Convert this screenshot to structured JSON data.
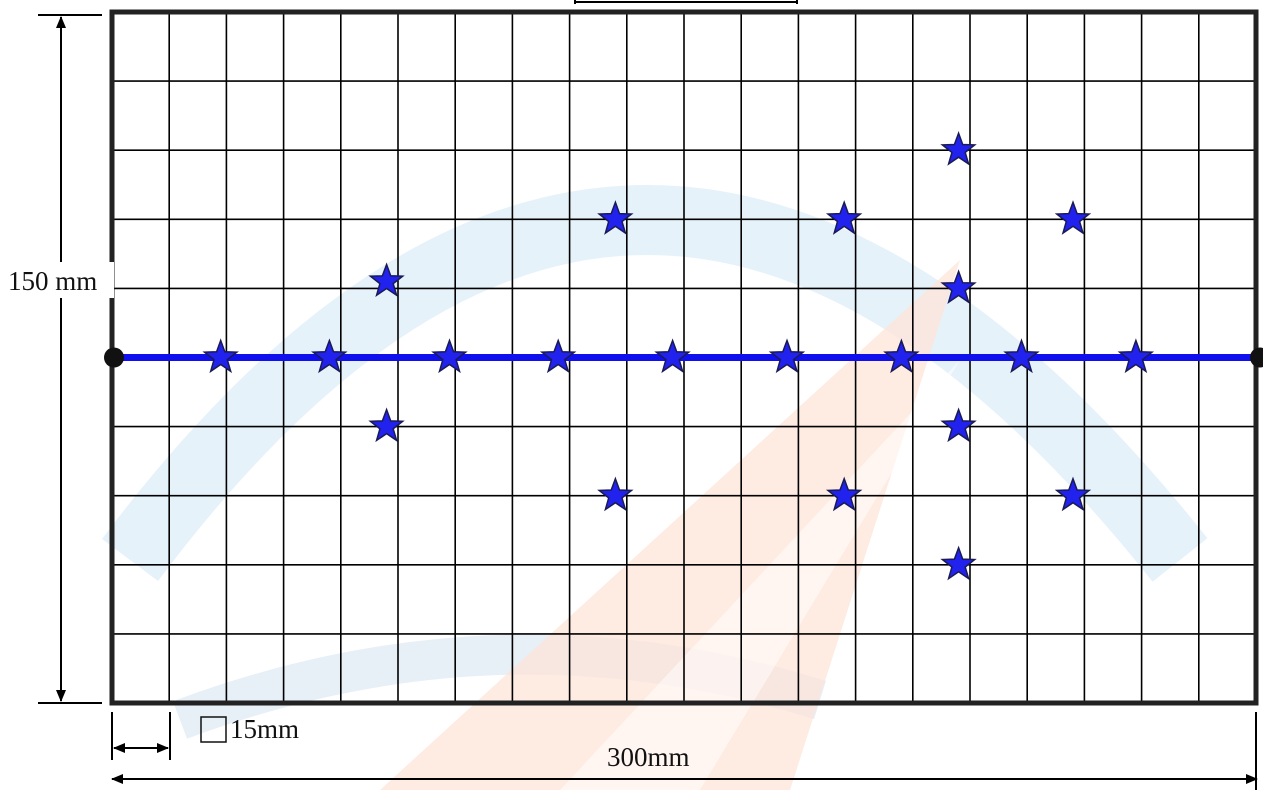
{
  "diagram": {
    "grid": {
      "columns": 20,
      "rows": 10
    },
    "labels": {
      "height": "150 mm",
      "width": "300mm",
      "cell": "15mm"
    },
    "center_line_row": 5,
    "points_grid_units": [
      [
        1.9,
        5.0
      ],
      [
        3.8,
        5.0
      ],
      [
        5.9,
        5.0
      ],
      [
        7.8,
        5.0
      ],
      [
        9.8,
        5.0
      ],
      [
        11.8,
        5.0
      ],
      [
        13.8,
        5.0
      ],
      [
        15.9,
        5.0
      ],
      [
        17.9,
        5.0
      ],
      [
        4.8,
        6.0
      ],
      [
        4.8,
        3.9
      ],
      [
        8.8,
        7.0
      ],
      [
        8.8,
        3.0
      ],
      [
        12.8,
        7.0
      ],
      [
        12.8,
        3.0
      ],
      [
        14.8,
        8.0
      ],
      [
        14.8,
        6.0
      ],
      [
        14.8,
        4.0
      ],
      [
        14.8,
        2.0
      ],
      [
        16.8,
        7.0
      ],
      [
        16.8,
        3.0
      ]
    ],
    "colors": {
      "grid": "#000000",
      "frame": "#222222",
      "center_line": "#1010ee",
      "star_fill": "#2222ee",
      "star_stroke": "#1a1a55",
      "watermark_blue": "#cfe8f8",
      "watermark_orange": "#fde6dc"
    }
  }
}
